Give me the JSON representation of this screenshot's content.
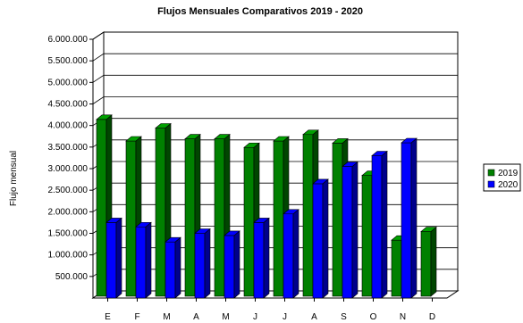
{
  "chart_data": {
    "type": "bar",
    "style": "3d-clustered",
    "title": "Flujos Mensuales Comparativos 2019 - 2020",
    "xlabel": "",
    "ylabel": "Flujo mensual",
    "categories": [
      "E",
      "F",
      "M",
      "A",
      "M",
      "J",
      "J",
      "A",
      "S",
      "O",
      "N",
      "D"
    ],
    "yticks": [
      "500.000",
      "1.000.000",
      "1.500.000",
      "2.000.000",
      "2.500.000",
      "3.000.000",
      "3.500.000",
      "4.000.000",
      "4.500.000",
      "5.000.000",
      "5.500.000",
      "6.000.000"
    ],
    "ylim": [
      0,
      6000000
    ],
    "grid": true,
    "legend_position": "right",
    "series": [
      {
        "name": "2019",
        "color": "#008000",
        "values": [
          4100000,
          3600000,
          3900000,
          3650000,
          3650000,
          3450000,
          3600000,
          3750000,
          3550000,
          2800000,
          1300000,
          1500000
        ]
      },
      {
        "name": "2020",
        "color": "#0000ff",
        "values": [
          1750000,
          1650000,
          1300000,
          1500000,
          1450000,
          1750000,
          1950000,
          2650000,
          3050000,
          3300000,
          3600000,
          null
        ]
      }
    ]
  }
}
